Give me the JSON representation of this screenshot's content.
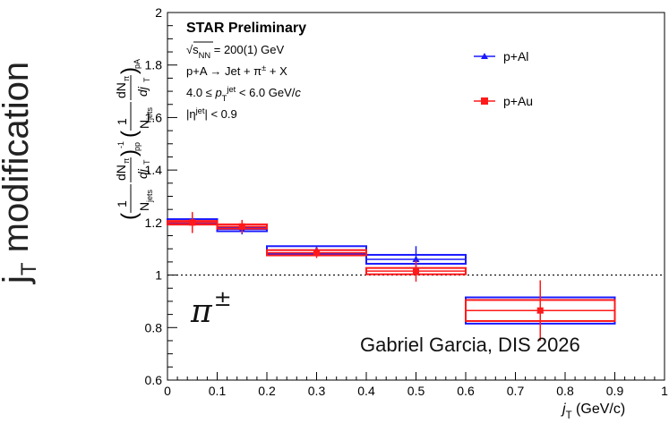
{
  "side_label": {
    "main": "j",
    "sub": "T",
    "rest": " modification"
  },
  "credit": "Gabriel Garcia, DIS 2026",
  "particle_label": {
    "symbol": "π",
    "charge": "±"
  },
  "chart_data": {
    "type": "scatter",
    "title": "STAR Preliminary",
    "annotations": [
      "√s_NN = 200(1) GeV",
      "p+A → Jet + π± + X",
      "4.0 ≤ p_T^jet < 6.0 GeV/c",
      "|η^jet| < 0.9"
    ],
    "xlabel": "j_T (GeV/c)",
    "ylabel": "(1/N_jets dN_π/dj_T)_pp^-1 (1/N_jets dN_π/dj_T)_pA",
    "xlim": [
      0,
      1
    ],
    "ylim": [
      0.6,
      2
    ],
    "xticks": [
      0,
      0.1,
      0.2,
      0.3,
      0.4,
      0.5,
      0.6,
      0.7,
      0.8,
      0.9,
      1
    ],
    "xtick_labels": [
      "0",
      "0.1",
      "0.2",
      "0.3",
      "0.4",
      "0.5",
      "0.6",
      "0.7",
      "0.8",
      "0.9",
      "1"
    ],
    "yticks": [
      0.6,
      0.8,
      1,
      1.2,
      1.4,
      1.6,
      1.8,
      2
    ],
    "ytick_labels": [
      "0.6",
      "0.8",
      "1",
      "1.2",
      "1.4",
      "1.6",
      "1.8",
      "2"
    ],
    "reference_line": 1,
    "legend_position": "top-right",
    "series": [
      {
        "name": "p+Al",
        "color": "#1a1aff",
        "points": [
          {
            "x": 0.05,
            "xlo": 0,
            "xhi": 0.1,
            "y": 1.205,
            "stat": 0.03,
            "sys": 0.008
          },
          {
            "x": 0.15,
            "xlo": 0.1,
            "xhi": 0.2,
            "y": 1.175,
            "stat": 0.02,
            "sys": 0.008
          },
          {
            "x": 0.3,
            "xlo": 0.2,
            "xhi": 0.4,
            "y": 1.095,
            "stat": 0.015,
            "sys": 0.015
          },
          {
            "x": 0.5,
            "xlo": 0.4,
            "xhi": 0.6,
            "y": 1.06,
            "stat": 0.05,
            "sys": 0.017
          },
          {
            "x": 0.75,
            "xlo": 0.6,
            "xhi": 0.9,
            "y": 0.865,
            "stat": 0.11,
            "sys": 0.05
          }
        ]
      },
      {
        "name": "p+Au",
        "color": "#ff1a1a",
        "points": [
          {
            "x": 0.05,
            "xlo": 0,
            "xhi": 0.1,
            "y": 1.2,
            "stat": 0.04,
            "sys": 0.006
          },
          {
            "x": 0.15,
            "xlo": 0.1,
            "xhi": 0.2,
            "y": 1.185,
            "stat": 0.025,
            "sys": 0.008
          },
          {
            "x": 0.3,
            "xlo": 0.2,
            "xhi": 0.4,
            "y": 1.085,
            "stat": 0.02,
            "sys": 0.01
          },
          {
            "x": 0.5,
            "xlo": 0.4,
            "xhi": 0.6,
            "y": 1.015,
            "stat": 0.04,
            "sys": 0.012
          },
          {
            "x": 0.75,
            "xlo": 0.6,
            "xhi": 0.9,
            "y": 0.865,
            "stat": 0.115,
            "sys": 0.04
          }
        ]
      }
    ]
  }
}
